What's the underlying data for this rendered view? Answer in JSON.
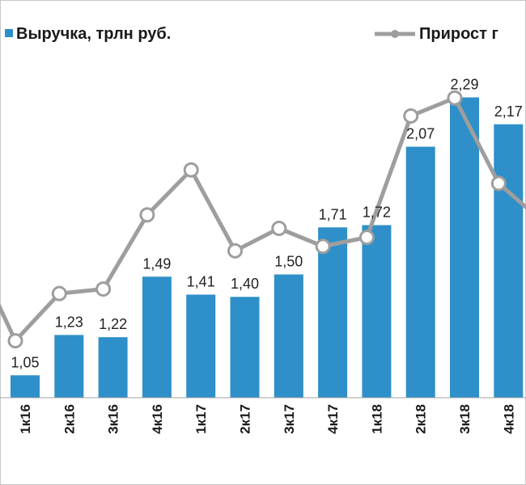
{
  "chart_data": {
    "type": "bar",
    "categories": [
      "1к16",
      "2к16",
      "3к16",
      "4к16",
      "1к17",
      "2к17",
      "3к17",
      "4к17",
      "1к18",
      "2к18",
      "3к18",
      "4к18"
    ],
    "series": [
      {
        "name": "Выручка, трлн руб.",
        "type": "bar",
        "values": [
          1.05,
          1.23,
          1.22,
          1.49,
          1.41,
          1.4,
          1.5,
          1.71,
          1.72,
          2.07,
          2.29,
          2.17
        ],
        "labels": [
          "1,05",
          "1,23",
          "1,22",
          "1,49",
          "1,41",
          "1,40",
          "1,50",
          "1,71",
          "1,72",
          "2,07",
          "2,29",
          "2,17"
        ],
        "color": "#2e8fc9"
      },
      {
        "name": "Прирост г",
        "type": "line",
        "values": [
          -5,
          5.5,
          6.5,
          23,
          33,
          15,
          20,
          16,
          18,
          45,
          49,
          30
        ],
        "color": "#9e9e9e"
      }
    ],
    "ylim_bar": [
      0.95,
      2.4
    ],
    "ylim_line": [
      -20,
      60
    ],
    "legend_position": "top",
    "grid": false
  }
}
